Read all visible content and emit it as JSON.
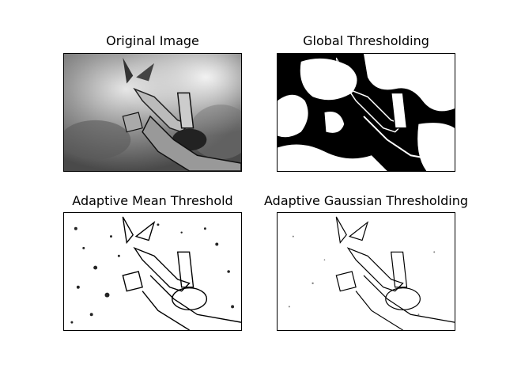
{
  "figure": {
    "panels": [
      {
        "title": "Original Image",
        "kind": "grayscale"
      },
      {
        "title": "Global Thresholding",
        "kind": "binary"
      },
      {
        "title": "Adaptive Mean Threshold",
        "kind": "adaptive-mean"
      },
      {
        "title": "Adaptive Gaussian Thresholding",
        "kind": "adaptive-gaussian"
      }
    ]
  }
}
